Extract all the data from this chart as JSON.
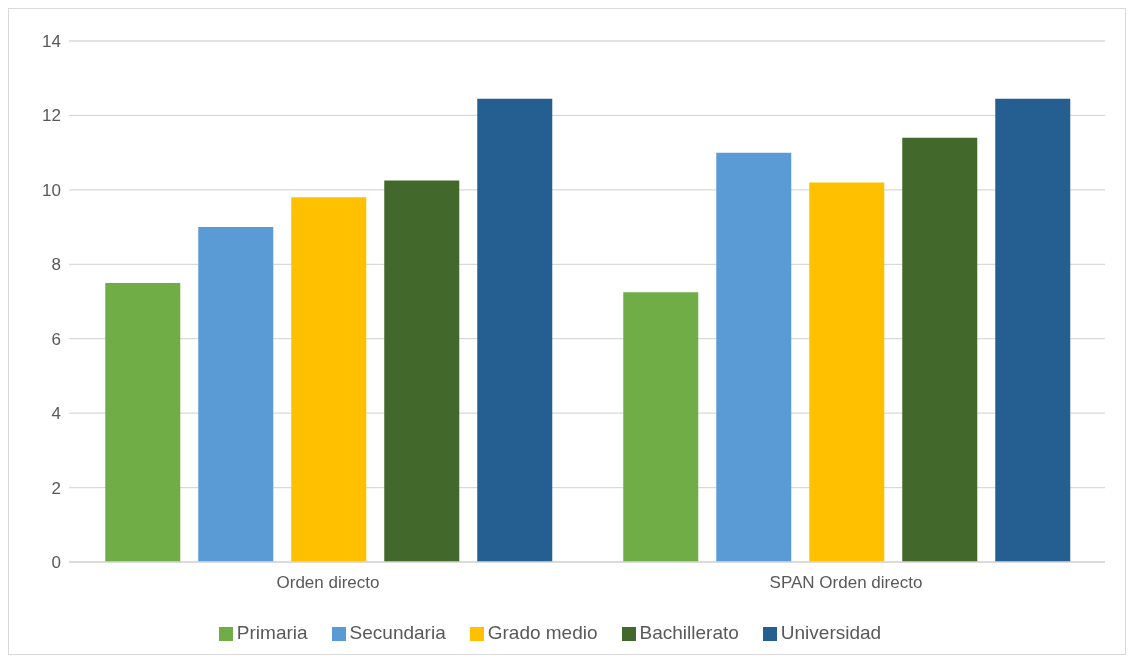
{
  "chart_data": {
    "type": "bar",
    "categories": [
      "Orden directo",
      "SPAN Orden directo"
    ],
    "series": [
      {
        "name": "Primaria",
        "color": "#70ad47",
        "values": [
          7.5,
          7.25
        ]
      },
      {
        "name": "Secundaria",
        "color": "#5b9bd5",
        "values": [
          9.0,
          11.0
        ]
      },
      {
        "name": "Grado medio",
        "color": "#ffc000",
        "values": [
          9.8,
          10.2
        ]
      },
      {
        "name": "Bachillerato",
        "color": "#43682b",
        "values": [
          10.25,
          11.4
        ]
      },
      {
        "name": "Universidad",
        "color": "#255e91",
        "values": [
          12.45,
          12.45
        ]
      }
    ],
    "ylim": [
      0,
      14
    ],
    "yticks": [
      0,
      2,
      4,
      6,
      8,
      10,
      12,
      14
    ],
    "grid": "y",
    "legend": "bottom"
  }
}
